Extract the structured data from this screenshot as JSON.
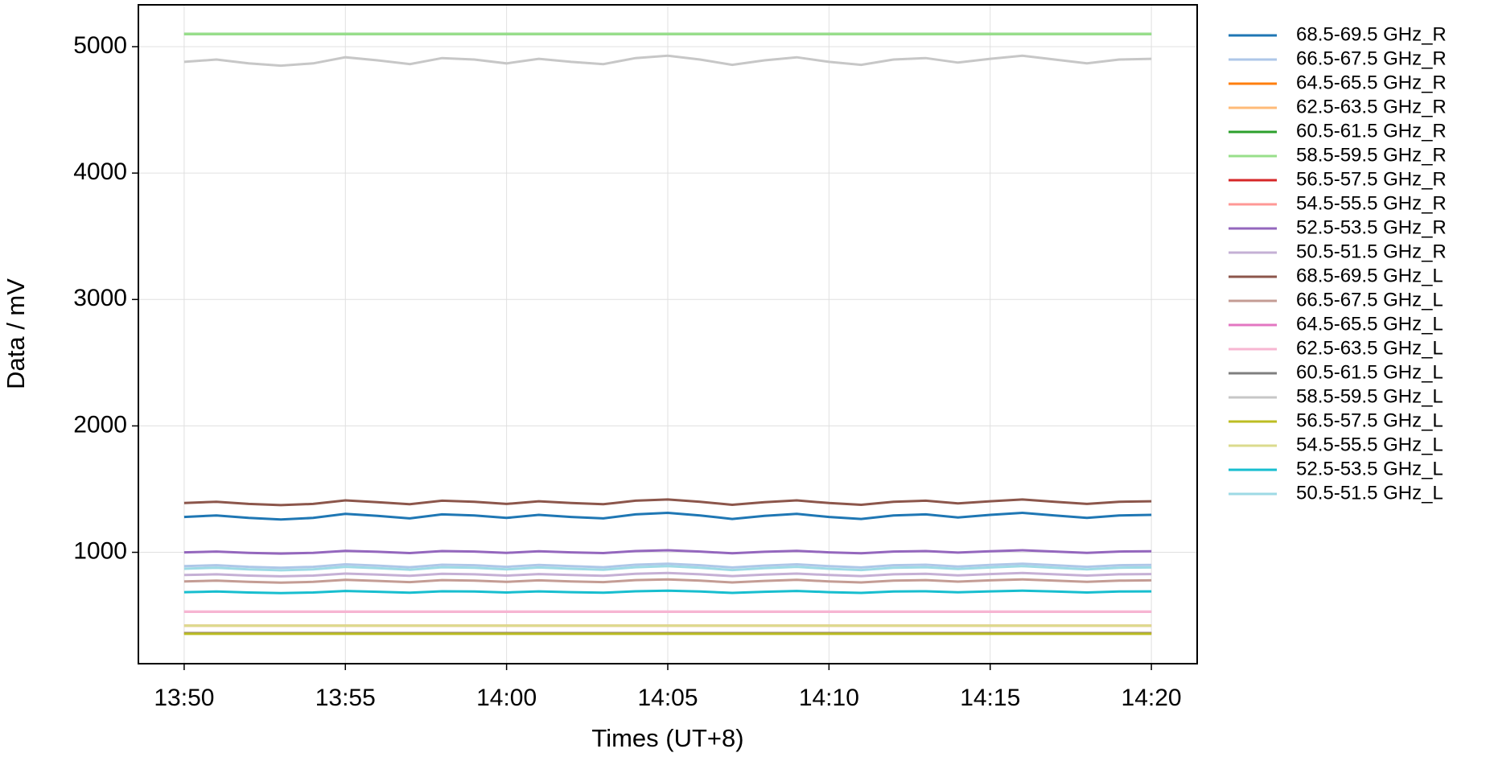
{
  "chart_data": {
    "type": "line",
    "x_label": "Times (UT+8)",
    "y_label": "Data / mV",
    "categories": [
      "13:50",
      null,
      null,
      null,
      null,
      "13:55",
      null,
      null,
      null,
      null,
      "14:00",
      null,
      null,
      null,
      null,
      "14:05",
      null,
      null,
      null,
      null,
      "14:10",
      null,
      null,
      null,
      null,
      "14:15",
      null,
      null,
      null,
      null,
      "14:20"
    ],
    "ylim": [
      119,
      5331
    ],
    "yticks": [
      1000,
      2000,
      3000,
      4000,
      5000
    ],
    "grid": true,
    "legend": "outside-right",
    "series": [
      {
        "name": "68.5-69.5 GHz_R",
        "color": "#1f77b4",
        "values": [
          1280,
          1292,
          1272,
          1260,
          1272,
          1304,
          1288,
          1268,
          1300,
          1292,
          1272,
          1296,
          1280,
          1268,
          1300,
          1312,
          1292,
          1264,
          1288,
          1304,
          1280,
          1264,
          1292,
          1300,
          1276,
          1296,
          1312,
          1292,
          1272,
          1292,
          1296
        ]
      },
      {
        "name": "66.5-67.5 GHz_R",
        "color": "#aec7e8",
        "values": [
          890,
          898,
          885,
          878,
          885,
          905,
          895,
          882,
          902,
          898,
          885,
          900,
          890,
          882,
          902,
          910,
          898,
          880,
          895,
          905,
          890,
          880,
          898,
          902,
          888,
          900,
          910,
          898,
          885,
          898,
          900
        ]
      },
      {
        "name": "64.5-65.5 GHz_R",
        "color": "#ff7f0e",
        "values": [
          360,
          360,
          360,
          360,
          360,
          360,
          360,
          360,
          360,
          360,
          360,
          360,
          360,
          360,
          360,
          360,
          360,
          360,
          360,
          360,
          360,
          360,
          360,
          360,
          360,
          360,
          360,
          360,
          360,
          360,
          360
        ]
      },
      {
        "name": "62.5-63.5 GHz_R",
        "color": "#ffbb78",
        "values": [
          420,
          420,
          420,
          420,
          420,
          420,
          420,
          420,
          420,
          420,
          420,
          420,
          420,
          420,
          420,
          420,
          420,
          420,
          420,
          420,
          420,
          420,
          420,
          420,
          420,
          420,
          420,
          420,
          420,
          420,
          420
        ]
      },
      {
        "name": "60.5-61.5 GHz_R",
        "color": "#2ca02c",
        "values": [
          5100,
          5100,
          5100,
          5100,
          5100,
          5100,
          5100,
          5100,
          5100,
          5100,
          5100,
          5100,
          5100,
          5100,
          5100,
          5100,
          5100,
          5100,
          5100,
          5100,
          5100,
          5100,
          5100,
          5100,
          5100,
          5100,
          5100,
          5100,
          5100,
          5100,
          5100
        ]
      },
      {
        "name": "58.5-59.5 GHz_R",
        "color": "#98df8a",
        "values": [
          5100,
          5100,
          5100,
          5100,
          5100,
          5100,
          5100,
          5100,
          5100,
          5100,
          5100,
          5100,
          5100,
          5100,
          5100,
          5100,
          5100,
          5100,
          5100,
          5100,
          5100,
          5100,
          5100,
          5100,
          5100,
          5100,
          5100,
          5100,
          5100,
          5100,
          5100
        ]
      },
      {
        "name": "56.5-57.5 GHz_R",
        "color": "#d62728",
        "values": [
          360,
          360,
          360,
          360,
          360,
          360,
          360,
          360,
          360,
          360,
          360,
          360,
          360,
          360,
          360,
          360,
          360,
          360,
          360,
          360,
          360,
          360,
          360,
          360,
          360,
          360,
          360,
          360,
          360,
          360,
          360
        ]
      },
      {
        "name": "54.5-55.5 GHz_R",
        "color": "#ff9896",
        "values": [
          420,
          420,
          420,
          420,
          420,
          420,
          420,
          420,
          420,
          420,
          420,
          420,
          420,
          420,
          420,
          420,
          420,
          420,
          420,
          420,
          420,
          420,
          420,
          420,
          420,
          420,
          420,
          420,
          420,
          420,
          420
        ]
      },
      {
        "name": "52.5-53.5 GHz_R",
        "color": "#9467bd",
        "values": [
          1000,
          1006,
          996,
          990,
          996,
          1012,
          1004,
          994,
          1010,
          1006,
          996,
          1008,
          1000,
          994,
          1010,
          1016,
          1006,
          992,
          1004,
          1012,
          1000,
          992,
          1006,
          1010,
          998,
          1008,
          1016,
          1006,
          996,
          1006,
          1008
        ]
      },
      {
        "name": "50.5-51.5 GHz_R",
        "color": "#c5b0d5",
        "values": [
          820,
          826,
          816,
          810,
          816,
          832,
          824,
          814,
          830,
          826,
          816,
          828,
          820,
          814,
          830,
          836,
          826,
          812,
          824,
          832,
          820,
          812,
          826,
          830,
          818,
          828,
          836,
          826,
          816,
          826,
          828
        ]
      },
      {
        "name": "68.5-69.5 GHz_L",
        "color": "#8c564b",
        "values": [
          1390,
          1400,
          1383,
          1373,
          1383,
          1411,
          1397,
          1380,
          1408,
          1400,
          1383,
          1404,
          1390,
          1380,
          1408,
          1418,
          1400,
          1376,
          1397,
          1411,
          1390,
          1376,
          1400,
          1408,
          1387,
          1404,
          1418,
          1400,
          1383,
          1400,
          1404
        ]
      },
      {
        "name": "66.5-67.5 GHz_L",
        "color": "#c49c94",
        "values": [
          770,
          776,
          766,
          760,
          766,
          782,
          774,
          764,
          780,
          776,
          766,
          778,
          770,
          764,
          780,
          786,
          776,
          762,
          774,
          782,
          770,
          762,
          776,
          780,
          768,
          778,
          786,
          776,
          766,
          776,
          778
        ]
      },
      {
        "name": "64.5-65.5 GHz_L",
        "color": "#e377c2",
        "values": [
          530,
          530,
          530,
          530,
          530,
          530,
          530,
          530,
          530,
          530,
          530,
          530,
          530,
          530,
          530,
          530,
          530,
          530,
          530,
          530,
          530,
          530,
          530,
          530,
          530,
          530,
          530,
          530,
          530,
          530,
          530
        ]
      },
      {
        "name": "62.5-63.5 GHz_L",
        "color": "#f7b6d2",
        "values": [
          530,
          530,
          530,
          530,
          530,
          530,
          530,
          530,
          530,
          530,
          530,
          530,
          530,
          530,
          530,
          530,
          530,
          530,
          530,
          530,
          530,
          530,
          530,
          530,
          530,
          530,
          530,
          530,
          530,
          530,
          530
        ]
      },
      {
        "name": "60.5-61.5 GHz_L",
        "color": "#7f7f7f",
        "values": [
          360,
          360,
          360,
          360,
          360,
          360,
          360,
          360,
          360,
          360,
          360,
          360,
          360,
          360,
          360,
          360,
          360,
          360,
          360,
          360,
          360,
          360,
          360,
          360,
          360,
          360,
          360,
          360,
          360,
          360,
          360
        ]
      },
      {
        "name": "58.5-59.5 GHz_L",
        "color": "#c7c7c7",
        "values": [
          4880,
          4898,
          4868,
          4850,
          4868,
          4916,
          4892,
          4862,
          4910,
          4898,
          4868,
          4904,
          4880,
          4862,
          4910,
          4928,
          4898,
          4856,
          4892,
          4916,
          4880,
          4856,
          4898,
          4910,
          4874,
          4904,
          4928,
          4898,
          4868,
          4898,
          4904
        ]
      },
      {
        "name": "56.5-57.5 GHz_L",
        "color": "#bcbd22",
        "values": [
          355,
          355,
          355,
          355,
          355,
          355,
          355,
          355,
          355,
          355,
          355,
          355,
          355,
          355,
          355,
          355,
          355,
          355,
          355,
          355,
          355,
          355,
          355,
          355,
          355,
          355,
          355,
          355,
          355,
          355,
          355
        ]
      },
      {
        "name": "54.5-55.5 GHz_L",
        "color": "#dbdb8d",
        "values": [
          420,
          420,
          420,
          420,
          420,
          420,
          420,
          420,
          420,
          420,
          420,
          420,
          420,
          420,
          420,
          420,
          420,
          420,
          420,
          420,
          420,
          420,
          420,
          420,
          420,
          420,
          420,
          420,
          420,
          420,
          420
        ]
      },
      {
        "name": "52.5-53.5 GHz_L",
        "color": "#17becf",
        "values": [
          685,
          690,
          682,
          678,
          682,
          694,
          688,
          680,
          692,
          690,
          682,
          691,
          685,
          680,
          692,
          697,
          690,
          679,
          688,
          694,
          685,
          679,
          690,
          692,
          684,
          691,
          697,
          690,
          682,
          690,
          691
        ]
      },
      {
        "name": "50.5-51.5 GHz_L",
        "color": "#9edae5",
        "values": [
          870,
          878,
          865,
          858,
          865,
          885,
          875,
          862,
          882,
          878,
          865,
          880,
          870,
          862,
          882,
          890,
          878,
          860,
          875,
          885,
          870,
          860,
          878,
          882,
          868,
          880,
          890,
          878,
          865,
          878,
          880
        ]
      }
    ]
  }
}
